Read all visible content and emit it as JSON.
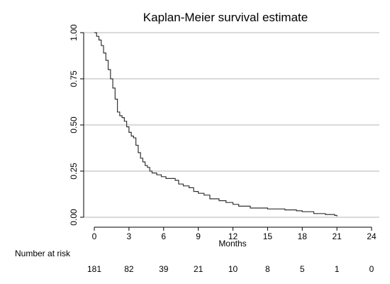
{
  "chart_data": {
    "type": "line",
    "title": "Kaplan-Meier survival estimate",
    "xlabel": "Months",
    "ylabel": "",
    "xlim": [
      0,
      24
    ],
    "ylim": [
      0,
      1
    ],
    "x_ticks": [
      "0",
      "3",
      "6",
      "9",
      "12",
      "15",
      "18",
      "21",
      "24"
    ],
    "x_tick_values": [
      0,
      3,
      6,
      9,
      12,
      15,
      18,
      21,
      24
    ],
    "y_ticks": [
      "0.00",
      "0.25",
      "0.50",
      "0.75",
      "1.00"
    ],
    "y_tick_values": [
      0,
      0.25,
      0.5,
      0.75,
      1
    ],
    "grid": "horizontal",
    "line_color": "#333333",
    "grid_color": "#b4b4b4",
    "series": [
      {
        "step": true,
        "x": [
          0,
          0.2,
          0.4,
          0.6,
          0.8,
          1.0,
          1.2,
          1.4,
          1.6,
          1.8,
          2.0,
          2.2,
          2.4,
          2.6,
          2.8,
          3.0,
          3.2,
          3.4,
          3.6,
          3.8,
          4.0,
          4.2,
          4.4,
          4.6,
          4.8,
          5.0,
          5.4,
          5.8,
          6.2,
          6.6,
          7.0,
          7.3,
          7.7,
          8.2,
          8.6,
          9.0,
          9.5,
          10.0,
          10.8,
          11.4,
          12.0,
          12.5,
          13.5,
          14.5,
          15.0,
          16.5,
          17.5,
          18.0,
          19.0,
          20.0,
          20.8,
          21.0
        ],
        "y": [
          1.0,
          0.98,
          0.96,
          0.93,
          0.89,
          0.85,
          0.8,
          0.75,
          0.7,
          0.64,
          0.57,
          0.55,
          0.54,
          0.52,
          0.49,
          0.46,
          0.44,
          0.43,
          0.39,
          0.35,
          0.32,
          0.3,
          0.28,
          0.27,
          0.25,
          0.24,
          0.23,
          0.22,
          0.21,
          0.21,
          0.2,
          0.18,
          0.17,
          0.16,
          0.14,
          0.13,
          0.12,
          0.1,
          0.09,
          0.08,
          0.07,
          0.06,
          0.05,
          0.05,
          0.045,
          0.04,
          0.035,
          0.03,
          0.02,
          0.015,
          0.01,
          0.005
        ]
      }
    ],
    "risk_table": {
      "label": "Number at risk",
      "months": [
        0,
        3,
        6,
        9,
        12,
        15,
        18,
        21,
        24
      ],
      "counts": [
        "181",
        "82",
        "39",
        "21",
        "10",
        "8",
        "5",
        "1",
        "0"
      ]
    }
  }
}
